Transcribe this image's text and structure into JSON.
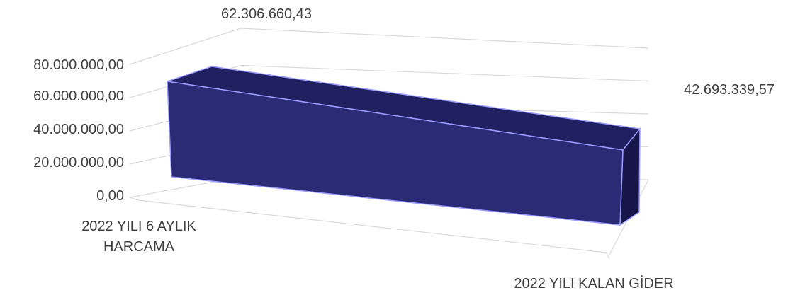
{
  "chart_data": {
    "type": "area",
    "view": "3d",
    "categories": [
      "2022 YILI 6 AYLIK HARCAMA",
      "2022 YILI KALAN GİDER"
    ],
    "series": [
      {
        "values": [
          62306660.43,
          42693339.57
        ]
      }
    ],
    "data_labels": [
      "62.306.660,43",
      "42.693.339,57"
    ],
    "y_ticks": [
      "0,00",
      "20.000.000,00",
      "40.000.000,00",
      "60.000.000,00",
      "80.000.000,00"
    ],
    "ylim": [
      0,
      80000000
    ],
    "grid": true,
    "legend": "none",
    "colors": {
      "front": "#2a2a75",
      "top": "#202060",
      "side": "#16164a",
      "edge": "#9a9aff",
      "grid": "#d9d9d9",
      "text": "#404040"
    }
  }
}
